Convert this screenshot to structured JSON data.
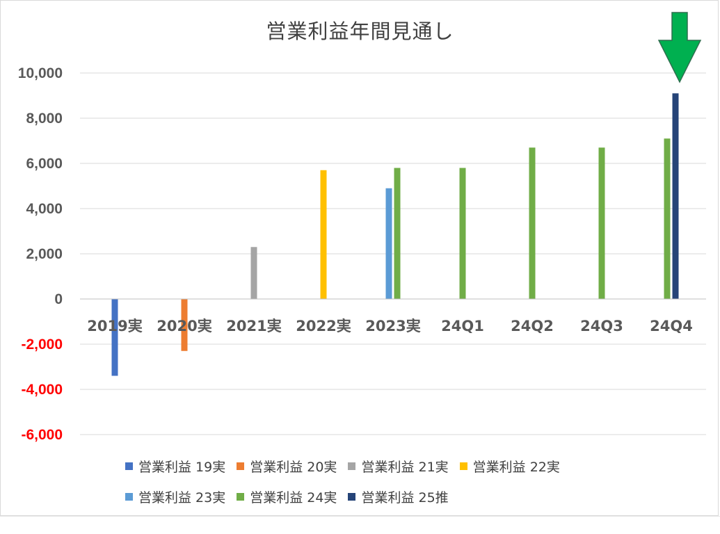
{
  "chart_data": {
    "type": "bar",
    "title": "営業利益年間見通し",
    "categories": [
      "2019実",
      "2020実",
      "2021実",
      "2022実",
      "2023実",
      "24Q1",
      "24Q2",
      "24Q3",
      "24Q4"
    ],
    "ylim": [
      -6000,
      10000
    ],
    "yticks": [
      {
        "value": 10000,
        "label": "10,000",
        "color": "#595959"
      },
      {
        "value": 8000,
        "label": "8,000",
        "color": "#595959"
      },
      {
        "value": 6000,
        "label": "6,000",
        "color": "#595959"
      },
      {
        "value": 4000,
        "label": "4,000",
        "color": "#595959"
      },
      {
        "value": 2000,
        "label": "2,000",
        "color": "#595959"
      },
      {
        "value": 0,
        "label": "0",
        "color": "#595959"
      },
      {
        "value": -2000,
        "label": "-2,000",
        "color": "#ff0000"
      },
      {
        "value": -4000,
        "label": "-4,000",
        "color": "#ff0000"
      },
      {
        "value": -6000,
        "label": "-6,000",
        "color": "#ff0000"
      }
    ],
    "grid": true,
    "legend_position": "bottom",
    "series": [
      {
        "name": "営業利益 19実",
        "color": "#4472c4",
        "values": [
          -3400,
          null,
          null,
          null,
          null,
          null,
          null,
          null,
          null
        ]
      },
      {
        "name": "営業利益 20実",
        "color": "#ed7d31",
        "values": [
          null,
          -2300,
          null,
          null,
          null,
          null,
          null,
          null,
          null
        ]
      },
      {
        "name": "営業利益 21実",
        "color": "#a5a5a5",
        "values": [
          null,
          null,
          2300,
          null,
          null,
          null,
          null,
          null,
          null
        ]
      },
      {
        "name": "営業利益 22実",
        "color": "#ffc000",
        "values": [
          null,
          null,
          null,
          5700,
          null,
          null,
          null,
          null,
          null
        ]
      },
      {
        "name": "営業利益 23実",
        "color": "#5b9bd5",
        "values": [
          null,
          null,
          null,
          null,
          4900,
          null,
          null,
          null,
          null
        ]
      },
      {
        "name": "営業利益 24実",
        "color": "#70ad47",
        "values": [
          null,
          null,
          null,
          null,
          5800,
          5800,
          6700,
          6700,
          7100
        ]
      },
      {
        "name": "営業利益 25推",
        "color": "#264478",
        "values": [
          null,
          null,
          null,
          null,
          null,
          null,
          null,
          null,
          9100
        ]
      }
    ],
    "annotation": {
      "type": "down-arrow",
      "color": "#00b050",
      "target_category": "24Q4"
    }
  }
}
